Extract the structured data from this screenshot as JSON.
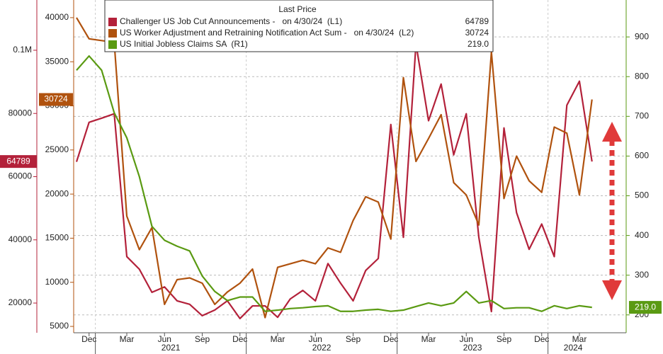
{
  "chart_data": {
    "type": "line",
    "legend_title": "Last Price",
    "x": [
      "2020-11",
      "2020-12",
      "2021-01",
      "2021-02",
      "2021-03",
      "2021-04",
      "2021-05",
      "2021-06",
      "2021-07",
      "2021-08",
      "2021-09",
      "2021-10",
      "2021-11",
      "2021-12",
      "2022-01",
      "2022-02",
      "2022-03",
      "2022-04",
      "2022-05",
      "2022-06",
      "2022-07",
      "2022-08",
      "2022-09",
      "2022-10",
      "2022-11",
      "2022-12",
      "2023-01",
      "2023-02",
      "2023-03",
      "2023-04",
      "2023-05",
      "2023-06",
      "2023-07",
      "2023-08",
      "2023-09",
      "2023-10",
      "2023-11",
      "2023-12",
      "2024-01",
      "2024-02",
      "2024-03",
      "2024-04"
    ],
    "xticks": [
      {
        "value": "2020-12",
        "label": "Dec"
      },
      {
        "value": "2021-03",
        "label": "Mar"
      },
      {
        "value": "2021-06",
        "label": "Jun"
      },
      {
        "value": "2021-09",
        "label": "Sep"
      },
      {
        "value": "2021-12",
        "label": "Dec"
      },
      {
        "value": "2022-03",
        "label": "Mar"
      },
      {
        "value": "2022-06",
        "label": "Jun"
      },
      {
        "value": "2022-09",
        "label": "Sep"
      },
      {
        "value": "2022-12",
        "label": "Dec"
      },
      {
        "value": "2023-03",
        "label": "Mar"
      },
      {
        "value": "2023-06",
        "label": "Jun"
      },
      {
        "value": "2023-09",
        "label": "Sep"
      },
      {
        "value": "2023-12",
        "label": "Dec"
      },
      {
        "value": "2024-03",
        "label": "Mar"
      }
    ],
    "x_groups": [
      "2021",
      "2022",
      "2023",
      "2024"
    ],
    "ylim": [
      10600,
      115900
    ],
    "yticks": [
      20000,
      40000,
      60000,
      80000,
      {
        "value": 100000,
        "label": "0.1M"
      }
    ],
    "y3lim": [
      4280,
      42000
    ],
    "y3ticks": [
      5000,
      10000,
      15000,
      20000,
      25000,
      30000,
      35000,
      40000
    ],
    "y2lim": [
      155,
      993
    ],
    "y2ticks": [
      200,
      300,
      400,
      500,
      600,
      700,
      800,
      900
    ],
    "grid": true,
    "series": [
      {
        "name": "Challenger US Job Cut Announcements -   on 4/30/24  (L1)",
        "color": "#b3213a",
        "axis": "y",
        "values": [
          64700,
          77200,
          78500,
          79900,
          34700,
          30700,
          23400,
          25100,
          20700,
          19600,
          16000,
          17800,
          20700,
          15100,
          19100,
          19100,
          15500,
          21300,
          24000,
          20700,
          32500,
          26300,
          20700,
          30300,
          34100,
          76500,
          40800,
          102000,
          77700,
          89300,
          66900,
          79900,
          40800,
          17300,
          75400,
          48600,
          37000,
          45000,
          34700,
          82600,
          90200,
          64789
        ]
      },
      {
        "name": "US Worker Adjustment and Retraining Notification Act Sum -   on 4/30/24  (L2)",
        "color": "#b0520e",
        "axis": "y3",
        "values": [
          40000,
          37600,
          37400,
          37200,
          17500,
          13700,
          16200,
          7500,
          10300,
          10500,
          9900,
          7500,
          8900,
          9900,
          11500,
          6000,
          11700,
          12100,
          12500,
          12100,
          13900,
          13400,
          17000,
          19700,
          19100,
          14900,
          33200,
          23700,
          26300,
          29000,
          21300,
          19900,
          16500,
          36100,
          19500,
          24300,
          21500,
          20200,
          27600,
          26900,
          19900,
          30724
        ]
      },
      {
        "name": "US Initial Jobless Claims SA  (R1)",
        "color": "#5a9a12",
        "axis": "y2",
        "last_label": "219.0",
        "values": [
          816,
          852,
          816,
          709,
          646,
          548,
          423,
          388,
          373,
          361,
          298,
          259,
          236,
          245,
          245,
          209,
          212,
          216,
          218,
          221,
          223,
          209,
          209,
          212,
          214,
          209,
          212,
          221,
          230,
          223,
          230,
          259,
          230,
          236,
          216,
          218,
          218,
          209,
          223,
          216,
          223,
          219
        ]
      }
    ]
  }
}
